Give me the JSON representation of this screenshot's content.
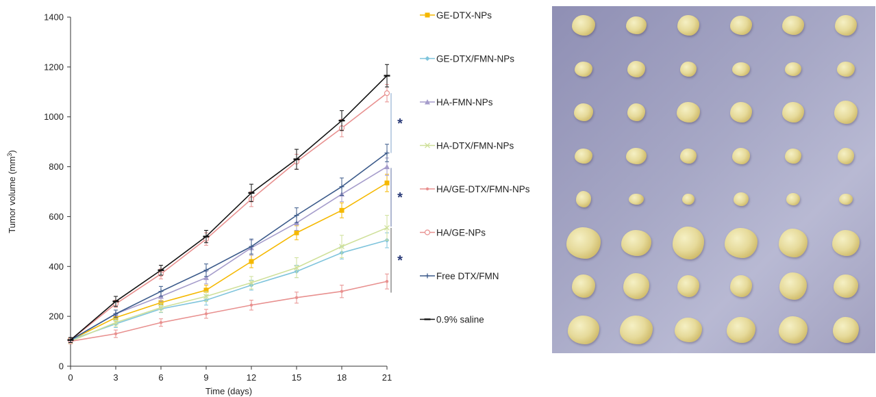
{
  "chart_data": {
    "type": "line",
    "title": "",
    "xlabel": "Time (days)",
    "ylabel_main": "Tumor volume (mm",
    "ylabel_sup": "3",
    "ylabel_end": ")",
    "x": [
      0,
      3,
      6,
      9,
      12,
      15,
      18,
      21
    ],
    "xticks": [
      "0",
      "3",
      "6",
      "9",
      "12",
      "15",
      "18",
      "21"
    ],
    "yticks": [
      "0",
      "200",
      "400",
      "600",
      "800",
      "1000",
      "1200",
      "1400"
    ],
    "xlim": [
      0,
      21
    ],
    "ylim": [
      0,
      1400
    ],
    "grid": false,
    "legend_placement": "right",
    "series": [
      {
        "name": "GE-DTX-NPs",
        "color": "#f5b800",
        "marker": "square",
        "values": [
          105,
          195,
          255,
          305,
          420,
          535,
          625,
          735
        ],
        "errors": [
          10,
          15,
          18,
          20,
          25,
          28,
          30,
          35
        ]
      },
      {
        "name": "GE-DTX/FMN-NPs",
        "color": "#7fc4dc",
        "marker": "diamond",
        "values": [
          105,
          170,
          230,
          265,
          325,
          380,
          455,
          505
        ],
        "errors": [
          10,
          15,
          15,
          20,
          20,
          25,
          25,
          30
        ]
      },
      {
        "name": "HA-FMN-NPs",
        "color": "#a59ccb",
        "marker": "triangle",
        "values": [
          105,
          210,
          280,
          355,
          475,
          575,
          690,
          800
        ],
        "errors": [
          10,
          15,
          20,
          25,
          30,
          30,
          30,
          35
        ]
      },
      {
        "name": "HA-DTX/FMN-NPs",
        "color": "#cfe09a",
        "marker": "x",
        "values": [
          100,
          175,
          235,
          280,
          335,
          395,
          480,
          555
        ],
        "errors": [
          10,
          15,
          18,
          20,
          25,
          40,
          45,
          50
        ]
      },
      {
        "name": "HA/GE-DTX/FMN-NPs",
        "color": "#e8908f",
        "marker": "dot",
        "values": [
          100,
          130,
          175,
          210,
          245,
          275,
          300,
          340
        ],
        "errors": [
          10,
          15,
          15,
          18,
          20,
          22,
          25,
          30
        ]
      },
      {
        "name": "HA/GE-NPs",
        "color": "#e8908f",
        "marker": "circle",
        "values": [
          105,
          250,
          370,
          510,
          670,
          820,
          955,
          1095
        ],
        "errors": [
          10,
          15,
          20,
          25,
          30,
          30,
          35,
          35
        ]
      },
      {
        "name": "Free DTX/FMN",
        "color": "#3b5a8a",
        "marker": "plus",
        "values": [
          105,
          210,
          300,
          385,
          480,
          605,
          720,
          855
        ],
        "errors": [
          10,
          15,
          20,
          25,
          30,
          30,
          35,
          35
        ]
      },
      {
        "name": "0.9% saline",
        "color": "#111111",
        "marker": "dash",
        "values": [
          105,
          260,
          385,
          520,
          695,
          830,
          985,
          1165
        ],
        "errors": [
          10,
          20,
          20,
          25,
          35,
          40,
          40,
          45
        ]
      }
    ],
    "annotations": [
      {
        "text": "*",
        "y_from": 855,
        "y_to": 1095,
        "bracket_color": "#7fa0c8"
      },
      {
        "text": "*",
        "y_from": 560,
        "y_to": 795,
        "bracket_color": "#5d6fa0"
      },
      {
        "text": "*",
        "y_from": 295,
        "y_to": 555,
        "bracket_color": "#555555"
      }
    ]
  },
  "photo": {
    "rows": 8,
    "columns": 6,
    "background": "#a5a6c4",
    "tumor_color": "#e3d694"
  }
}
